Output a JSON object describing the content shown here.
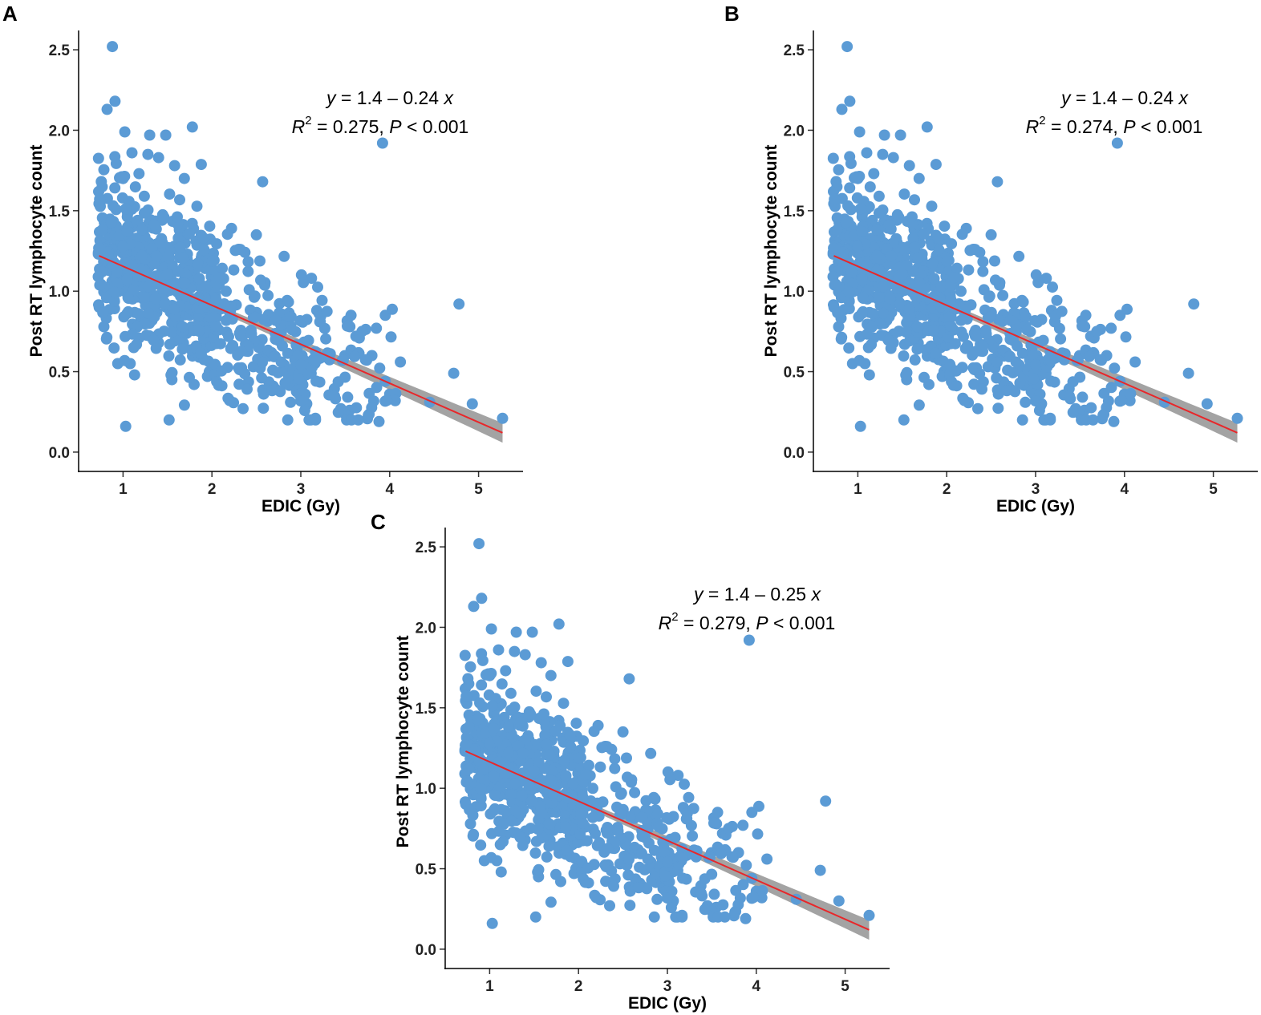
{
  "figure": {
    "point_color": "#5b9bd5",
    "line_color": "#e8272a",
    "band_color": "#808080"
  },
  "chart_data": [
    {
      "type": "scatter",
      "panel": "A",
      "xlabel": "EDIC (Gy)",
      "ylabel": "Post RT lymphocyte count",
      "xlim": [
        0.5,
        5.5
      ],
      "ylim": [
        -0.12,
        2.62
      ],
      "xticks": [
        "1",
        "2",
        "3",
        "4",
        "5"
      ],
      "yticks": [
        "0.0",
        "0.5",
        "1.0",
        "1.5",
        "2.0",
        "2.5"
      ],
      "equation": {
        "intercept": "1.4",
        "op": "–",
        "slope": "0.24"
      },
      "r2": "0.275",
      "p_text": "< 0.001",
      "fit": {
        "x0": 0.73,
        "y0": 1.22,
        "x1": 5.27,
        "y1": 0.12
      },
      "seed": 11
    },
    {
      "type": "scatter",
      "panel": "B",
      "xlabel": "EDIC (Gy)",
      "ylabel": "Post RT lymphocyte count",
      "xlim": [
        0.5,
        5.5
      ],
      "ylim": [
        -0.12,
        2.62
      ],
      "xticks": [
        "1",
        "2",
        "3",
        "4",
        "5"
      ],
      "yticks": [
        "0.0",
        "0.5",
        "1.0",
        "1.5",
        "2.0",
        "2.5"
      ],
      "equation": {
        "intercept": "1.4",
        "op": "–",
        "slope": "0.24"
      },
      "r2": "0.274",
      "p_text": "< 0.001",
      "fit": {
        "x0": 0.73,
        "y0": 1.22,
        "x1": 5.27,
        "y1": 0.12
      },
      "seed": 11
    },
    {
      "type": "scatter",
      "panel": "C",
      "xlabel": "EDIC (Gy)",
      "ylabel": "Post RT lymphocyte count",
      "xlim": [
        0.5,
        5.5
      ],
      "ylim": [
        -0.12,
        2.62
      ],
      "xticks": [
        "1",
        "2",
        "3",
        "4",
        "5"
      ],
      "yticks": [
        "0.0",
        "0.5",
        "1.0",
        "1.5",
        "2.0",
        "2.5"
      ],
      "equation": {
        "intercept": "1.4",
        "op": "–",
        "slope": "0.25"
      },
      "r2": "0.279",
      "p_text": "< 0.001",
      "fit": {
        "x0": 0.73,
        "y0": 1.23,
        "x1": 5.27,
        "y1": 0.12
      },
      "seed": 11
    }
  ],
  "highlighted_points": [
    [
      0.88,
      2.52
    ],
    [
      0.91,
      2.18
    ],
    [
      0.82,
      2.13
    ],
    [
      3.92,
      1.92
    ],
    [
      1.78,
      2.02
    ],
    [
      1.02,
      1.99
    ],
    [
      1.3,
      1.97
    ],
    [
      1.48,
      1.97
    ],
    [
      2.57,
      1.68
    ],
    [
      4.78,
      0.92
    ],
    [
      4.72,
      0.49
    ],
    [
      1.03,
      0.16
    ],
    [
      5.27,
      0.21
    ],
    [
      4.93,
      0.3
    ],
    [
      4.45,
      0.31
    ],
    [
      3.88,
      0.19
    ],
    [
      3.12,
      1.08
    ],
    [
      3.95,
      0.85
    ],
    [
      4.12,
      0.56
    ],
    [
      2.5,
      1.35
    ],
    [
      2.3,
      1.26
    ],
    [
      2.22,
      1.39
    ],
    [
      1.28,
      1.85
    ],
    [
      1.4,
      1.83
    ],
    [
      1.1,
      1.86
    ],
    [
      1.18,
      1.73
    ],
    [
      1.58,
      1.78
    ],
    [
      1.0,
      1.7
    ],
    [
      2.96,
      0.63
    ],
    [
      3.85,
      0.77
    ],
    [
      3.95,
      0.44
    ],
    [
      4.0,
      0.36
    ],
    [
      3.45,
      0.27
    ],
    [
      3.55,
      0.26
    ],
    [
      2.35,
      0.27
    ],
    [
      0.94,
      0.55
    ],
    [
      1.13,
      0.48
    ],
    [
      1.08,
      0.55
    ],
    [
      1.55,
      0.45
    ],
    [
      1.8,
      0.42
    ],
    [
      3.8,
      0.6
    ],
    [
      3.62,
      0.72
    ]
  ]
}
